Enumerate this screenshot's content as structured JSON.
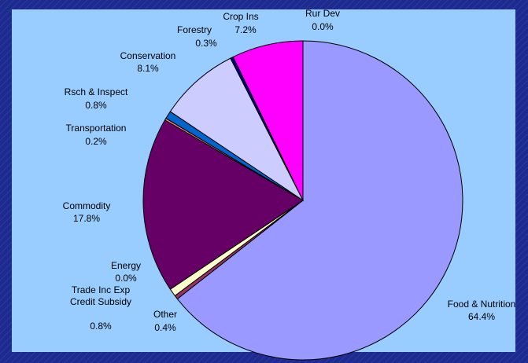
{
  "chart_data": {
    "type": "pie",
    "categories": [
      "Food & Nutrition",
      "Other",
      "Trade Inc Exp Credit Subsidy",
      "Energy",
      "Commodity",
      "Transportation",
      "Rsch & Inspect",
      "Conservation",
      "Forestry",
      "Crop Ins",
      "Rur Dev"
    ],
    "values": [
      64.4,
      0.4,
      0.8,
      0.0,
      17.8,
      0.2,
      0.8,
      8.1,
      0.3,
      7.2,
      0.0
    ],
    "value_labels": [
      "64.4%",
      "0.4%",
      "0.8%",
      "0.0%",
      "17.8%",
      "0.2%",
      "0.8%",
      "8.1%",
      "0.3%",
      "7.2%",
      "0.0%"
    ],
    "colors": [
      "#9999ff",
      "#993366",
      "#ffffcc",
      "#ccffff",
      "#660066",
      "#ff8080",
      "#0066cc",
      "#ccccff",
      "#000080",
      "#ff00ff",
      "#00ccff"
    ]
  }
}
